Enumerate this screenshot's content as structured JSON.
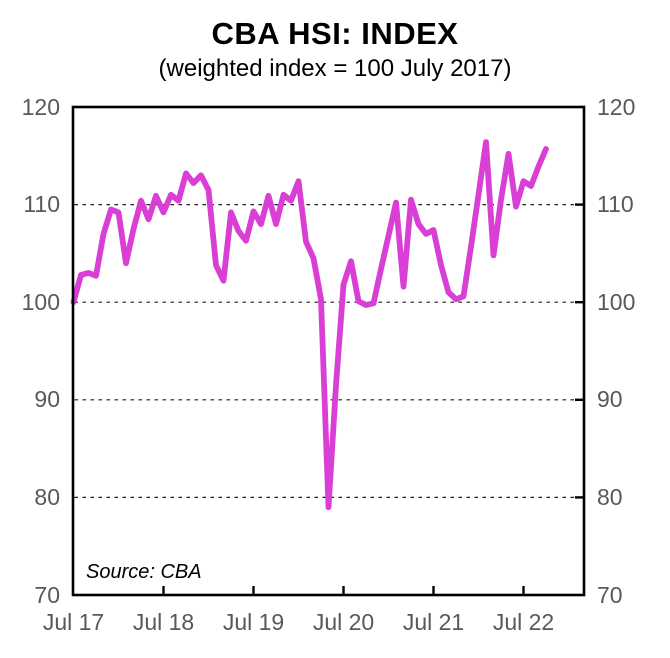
{
  "header": {
    "title": "CBA HSI: INDEX",
    "subtitle": "(weighted index = 100 July 2017)"
  },
  "chart_data": {
    "type": "line",
    "title": "CBA HSI: INDEX",
    "subtitle": "(weighted index = 100 July 2017)",
    "series_name": "CBA HSI weighted index",
    "source": "Source: CBA",
    "line_color": "#DA3FD5",
    "axis_label_color": "#58595b",
    "background_color": "#ffffff",
    "legend": "none",
    "grid": "horizontal dashed at 80, 90, 100, 110",
    "ylim": [
      70,
      120
    ],
    "y_ticks": [
      120,
      110,
      100,
      90,
      80,
      70
    ],
    "gridlines_at": [
      110,
      100,
      90,
      80
    ],
    "x_tick_labels": [
      "Jul 17",
      "Jul 18",
      "Jul 19",
      "Jul 20",
      "Jul 21",
      "Jul 22"
    ],
    "months_per_tick": 12,
    "x": [
      "Jul 17",
      "Aug 17",
      "Sep 17",
      "Oct 17",
      "Nov 17",
      "Dec 17",
      "Jan 18",
      "Feb 18",
      "Mar 18",
      "Apr 18",
      "May 18",
      "Jun 18",
      "Jul 18",
      "Aug 18",
      "Sep 18",
      "Oct 18",
      "Nov 18",
      "Dec 18",
      "Jan 19",
      "Feb 19",
      "Mar 19",
      "Apr 19",
      "May 19",
      "Jun 19",
      "Jul 19",
      "Aug 19",
      "Sep 19",
      "Oct 19",
      "Nov 19",
      "Dec 19",
      "Jan 20",
      "Feb 20",
      "Mar 20",
      "Apr 20",
      "May 20",
      "Jun 20",
      "Jul 20",
      "Aug 20",
      "Sep 20",
      "Oct 20",
      "Nov 20",
      "Dec 20",
      "Jan 21",
      "Feb 21",
      "Mar 21",
      "Apr 21",
      "May 21",
      "Jun 21",
      "Jul 21",
      "Aug 21",
      "Sep 21",
      "Oct 21",
      "Nov 21",
      "Dec 21",
      "Jan 22",
      "Feb 22",
      "Mar 22",
      "Apr 22",
      "May 22",
      "Jun 22",
      "Jul 22",
      "Aug 22",
      "Sep 22",
      "Oct 22"
    ],
    "values": [
      100.0,
      102.8,
      103.0,
      102.7,
      107.0,
      109.5,
      109.2,
      104.0,
      107.5,
      110.4,
      108.5,
      110.9,
      109.2,
      111.0,
      110.4,
      113.2,
      112.2,
      113.0,
      111.5,
      103.8,
      102.2,
      109.2,
      107.3,
      106.3,
      109.3,
      108.0,
      110.9,
      108.0,
      111.0,
      110.4,
      112.4,
      106.2,
      104.5,
      100.3,
      79.0,
      91.5,
      101.8,
      104.2,
      100.1,
      99.7,
      99.9,
      103.4,
      106.8,
      110.2,
      101.6,
      110.5,
      108.0,
      107.0,
      107.4,
      103.8,
      101.0,
      100.3,
      100.6,
      105.7,
      111.0,
      116.4,
      104.8,
      110.5,
      115.2,
      109.8,
      112.4,
      111.9,
      113.9,
      115.7
    ]
  }
}
